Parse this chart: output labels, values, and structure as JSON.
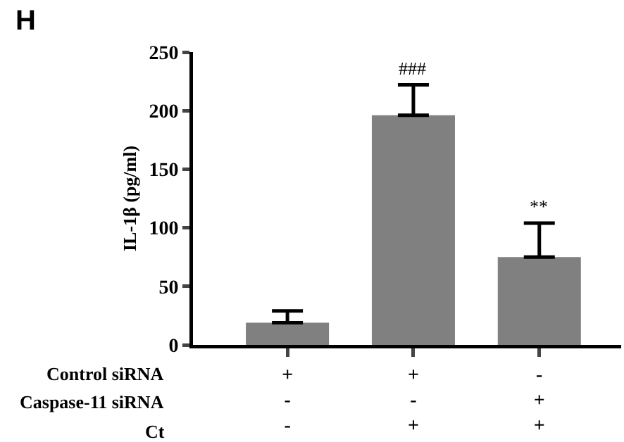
{
  "chart_data": {
    "type": "bar",
    "ylabel": "IL-1β (pg/ml)",
    "categories": [
      "+\n-\n-",
      "+\n-\n+",
      "-\n+\n+"
    ],
    "values": [
      19,
      196,
      75
    ],
    "color": "#808080",
    "errors": [
      [
        19,
        29
      ],
      [
        196,
        222
      ],
      [
        75,
        104
      ]
    ],
    "ylim": [
      0,
      250
    ],
    "yticks": [
      0,
      50,
      100,
      150,
      200,
      250
    ],
    "grid": false,
    "annotations": [
      "H",
      "Control siRNA",
      "Caspase-11 siRNA",
      "Ct",
      {
        "text": "###",
        "x": "+\n-\n+",
        "y": 222
      },
      {
        "text": "**",
        "x": "-\n+\n+",
        "y": 104
      }
    ]
  }
}
